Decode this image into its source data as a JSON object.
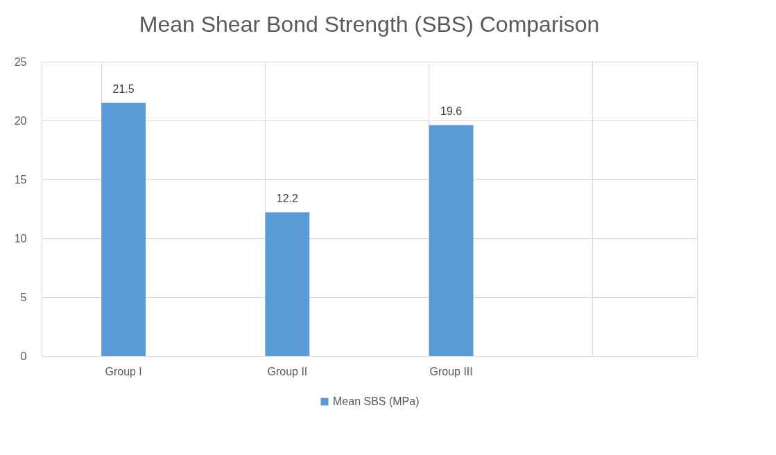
{
  "chart_data": {
    "type": "bar",
    "title": "Mean Shear Bond Strength (SBS) Comparison",
    "categories": [
      "Group I",
      "Group II",
      "Group III",
      null
    ],
    "series": [
      {
        "name": "Mean SBS (MPa)",
        "color": "#5b9bd5",
        "values": [
          21.5,
          12.2,
          19.6,
          null
        ]
      }
    ],
    "ylim": [
      0,
      25
    ],
    "yticks": [
      0,
      5,
      10,
      15,
      20,
      25
    ],
    "grid": true,
    "legend": "bottom",
    "data_labels": true
  }
}
